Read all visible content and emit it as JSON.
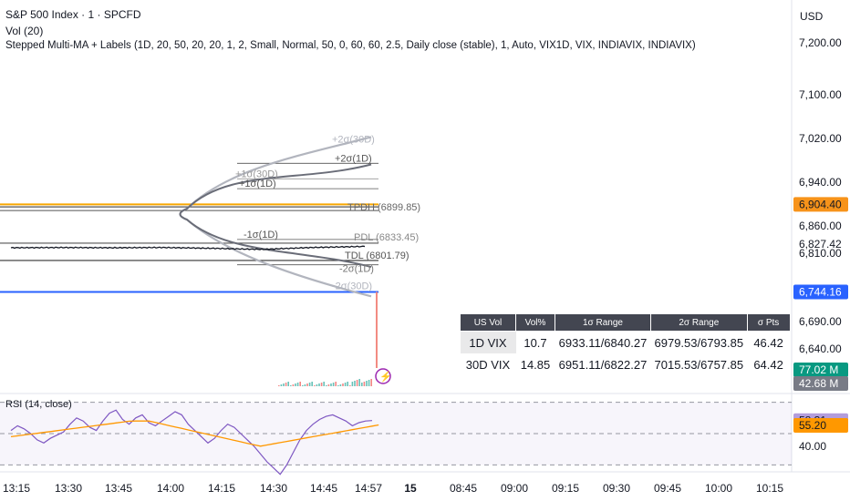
{
  "header": {
    "symbol": "S&P 500 Index · 1 · SPCFD",
    "vol": "Vol (20)",
    "indicator": "Stepped Multi-MA + Labels (1D, 20, 50, 20, 20, 1, 2, Small, Normal, 50, 0, 60, 60, 2.5, Daily close (stable), 1, Auto, VIX1D, VIX, INDIAVIX, INDIAVIX)",
    "currency": "USD"
  },
  "rsi_title": "RSI (14, close)",
  "price_axis": [
    "7,200.00",
    "7,100.00",
    "7,020.00",
    "6,940.00",
    "6,860.00",
    "6,827.42",
    "6,810.00",
    "6,690.00",
    "6,640.00"
  ],
  "price_tags": [
    {
      "text": "6,904.40",
      "bg": "#f7931a",
      "color": "#131722"
    },
    {
      "text": "6,744.16",
      "bg": "#2962ff",
      "color": "#ffffff"
    },
    {
      "text": "77.02 M",
      "bg": "#089981",
      "color": "#ffffff"
    },
    {
      "text": "42.68 M",
      "bg": "#787b86",
      "color": "#ffffff"
    },
    {
      "text": "58.31",
      "bg": "#b39ddb",
      "color": "#131722"
    },
    {
      "text": "55.20",
      "bg": "#ff9800",
      "color": "#131722"
    }
  ],
  "rsi_axis": [
    "40.00"
  ],
  "time_axis": [
    "13:15",
    "13:30",
    "13:45",
    "14:00",
    "14:15",
    "14:30",
    "14:45",
    "14:57",
    "15",
    "08:45",
    "09:00",
    "09:15",
    "09:30",
    "09:45",
    "10:00",
    "10:15"
  ],
  "level_labels": {
    "p2_30d": "+2σ(30D)",
    "p2_1d": "+2σ(1D)",
    "p1_30d": "+1σ(30D)",
    "p1_1d": "+1σ(1D)",
    "tpdh": "TPDH (6899.85)",
    "m1_1d": "-1σ(1D)",
    "pdl": "PDL (6833.45)",
    "tdl": "TDL (6801.79)",
    "m2_1d": "-2σ(1D)",
    "m2_30d": "-2σ(30D)"
  },
  "vol_table": {
    "headers": [
      "US Vol",
      "Vol%",
      "1σ Range",
      "2σ Range",
      "σ Pts"
    ],
    "rows": [
      [
        "1D VIX",
        "10.7",
        "6933.11/6840.27",
        "6979.53/6793.85",
        "46.42"
      ],
      [
        "30D VIX",
        "14.85",
        "6951.11/6822.27",
        "7015.53/6757.85",
        "64.42"
      ]
    ]
  },
  "chart_data": {
    "type": "line",
    "title": "S&P 500 Index · 1 · SPCFD",
    "x": [
      "13:15",
      "13:30",
      "13:45",
      "14:00",
      "14:15",
      "14:30",
      "14:45",
      "14:57"
    ],
    "series": [
      {
        "name": "S&P 500 Index",
        "values": [
          6825.0,
          6825.5,
          6825.0,
          6825.5,
          6824.0,
          6822.0,
          6825.5,
          6827.4
        ]
      }
    ],
    "levels": {
      "TPDH": 6899.85,
      "PDL": 6833.45,
      "TDL": 6801.79,
      "orange_line": 6904.4,
      "blue_line": 6744.16,
      "+2σ(30D)": 7015.53,
      "+2σ(1D)": 6979.53,
      "+1σ(30D)": 6951.11,
      "+1σ(1D)": 6933.11,
      "-1σ(1D)": 6840.27,
      "-2σ(1D)": 6793.85,
      "-2σ(30D)": 6757.85
    },
    "ylim": [
      6600,
      7230
    ],
    "rsi": {
      "name": "RSI (14, close)",
      "values": [
        52,
        55,
        53,
        50,
        46,
        44,
        47,
        49,
        51,
        56,
        60,
        58,
        54,
        52,
        58,
        63,
        65,
        59,
        56,
        60,
        62,
        57,
        55,
        58,
        61,
        64,
        62,
        56,
        52,
        48,
        44,
        47,
        52,
        56,
        54,
        50,
        46,
        42,
        37,
        32,
        28,
        24,
        30,
        38,
        46,
        52,
        56,
        59,
        61,
        62,
        60,
        58,
        55,
        57,
        58,
        58.31
      ],
      "ma": 55.2,
      "ylim": [
        25,
        75
      ]
    },
    "volume": {
      "last": "77.02 M",
      "avg": "42.68 M"
    }
  }
}
